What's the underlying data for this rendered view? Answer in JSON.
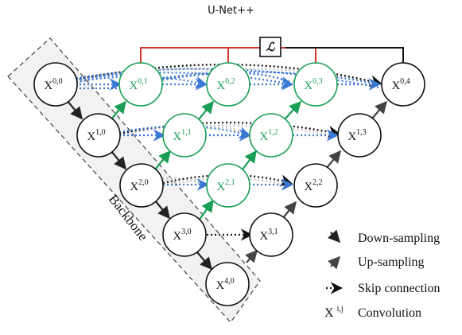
{
  "title": "U-Net++",
  "backbone_label": "Backbone",
  "loss_symbol": "ℒ",
  "colors": {
    "node_backbone": "#111111",
    "node_nested": "#1a9e55",
    "arrow_down": "#222222",
    "arrow_up": "#444444",
    "skip_black": "#111111",
    "skip_blue": "#3a78d4",
    "skip_gray": "#c8c8c8",
    "loss_line_red": "#d23a2f",
    "loss_line_black": "#111111"
  },
  "nodes": [
    {
      "id": "0,0",
      "base": "X",
      "sup": "0,0",
      "group": "backbone"
    },
    {
      "id": "1,0",
      "base": "X",
      "sup": "1,0",
      "group": "backbone"
    },
    {
      "id": "2,0",
      "base": "X",
      "sup": "2,0",
      "group": "backbone"
    },
    {
      "id": "3,0",
      "base": "X",
      "sup": "3,0",
      "group": "backbone"
    },
    {
      "id": "4,0",
      "base": "X",
      "sup": "4,0",
      "group": "backbone"
    },
    {
      "id": "0,1",
      "base": "X",
      "sup": "0,1",
      "group": "nested"
    },
    {
      "id": "0,2",
      "base": "X",
      "sup": "0,2",
      "group": "nested"
    },
    {
      "id": "0,3",
      "base": "X",
      "sup": "0,3",
      "group": "nested"
    },
    {
      "id": "1,1",
      "base": "X",
      "sup": "1,1",
      "group": "nested"
    },
    {
      "id": "1,2",
      "base": "X",
      "sup": "1,2",
      "group": "nested"
    },
    {
      "id": "2,1",
      "base": "X",
      "sup": "2,1",
      "group": "nested"
    },
    {
      "id": "0,4",
      "base": "X",
      "sup": "0,4",
      "group": "decoder"
    },
    {
      "id": "1,3",
      "base": "X",
      "sup": "1,3",
      "group": "decoder"
    },
    {
      "id": "2,2",
      "base": "X",
      "sup": "2,2",
      "group": "decoder"
    },
    {
      "id": "3,1",
      "base": "X",
      "sup": "3,1",
      "group": "decoder"
    }
  ],
  "legend": [
    {
      "icon": "down-sampling-arrow-icon",
      "label": "Down-sampling"
    },
    {
      "icon": "up-sampling-arrow-icon",
      "label": "Up-sampling"
    },
    {
      "icon": "skip-connection-arrow-icon",
      "label": "Skip connection"
    },
    {
      "icon": "convolution-symbol",
      "symbol_base": "X",
      "symbol_sup": "i,j",
      "label": "Convolution"
    }
  ]
}
